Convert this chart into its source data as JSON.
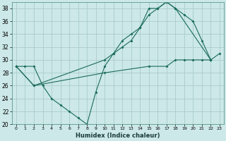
{
  "xlabel": "Humidex (Indice chaleur)",
  "bg_color": "#cce8e8",
  "grid_color": "#aacccc",
  "line_color": "#1a6b5a",
  "xlim": [
    -0.5,
    23.5
  ],
  "ylim": [
    20,
    39
  ],
  "xticks": [
    0,
    1,
    2,
    3,
    4,
    5,
    6,
    7,
    8,
    9,
    10,
    11,
    12,
    13,
    14,
    15,
    16,
    17,
    18,
    19,
    20,
    21,
    22,
    23
  ],
  "yticks": [
    20,
    22,
    24,
    26,
    28,
    30,
    32,
    34,
    36,
    38
  ],
  "line1_x": [
    0,
    1,
    2,
    3,
    4,
    5,
    6,
    7,
    8,
    9,
    10,
    11,
    12,
    13,
    14,
    15,
    16,
    17,
    18,
    19,
    20,
    21,
    22
  ],
  "line1_y": [
    29,
    29,
    29,
    26,
    24,
    23,
    22,
    21,
    20,
    25,
    29,
    31,
    32,
    33,
    35,
    37,
    38,
    39,
    38,
    37,
    36,
    33,
    30
  ],
  "line2_x": [
    0,
    2,
    10,
    11,
    12,
    13,
    14,
    15,
    16,
    17,
    18,
    22
  ],
  "line2_y": [
    29,
    26,
    30,
    31,
    33,
    34,
    35,
    38,
    38,
    39,
    38,
    30
  ],
  "line3_x": [
    0,
    2,
    10,
    15,
    17,
    18,
    19,
    20,
    21,
    22,
    23
  ],
  "line3_y": [
    29,
    26,
    28,
    29,
    29,
    30,
    30,
    30,
    30,
    30,
    31
  ]
}
